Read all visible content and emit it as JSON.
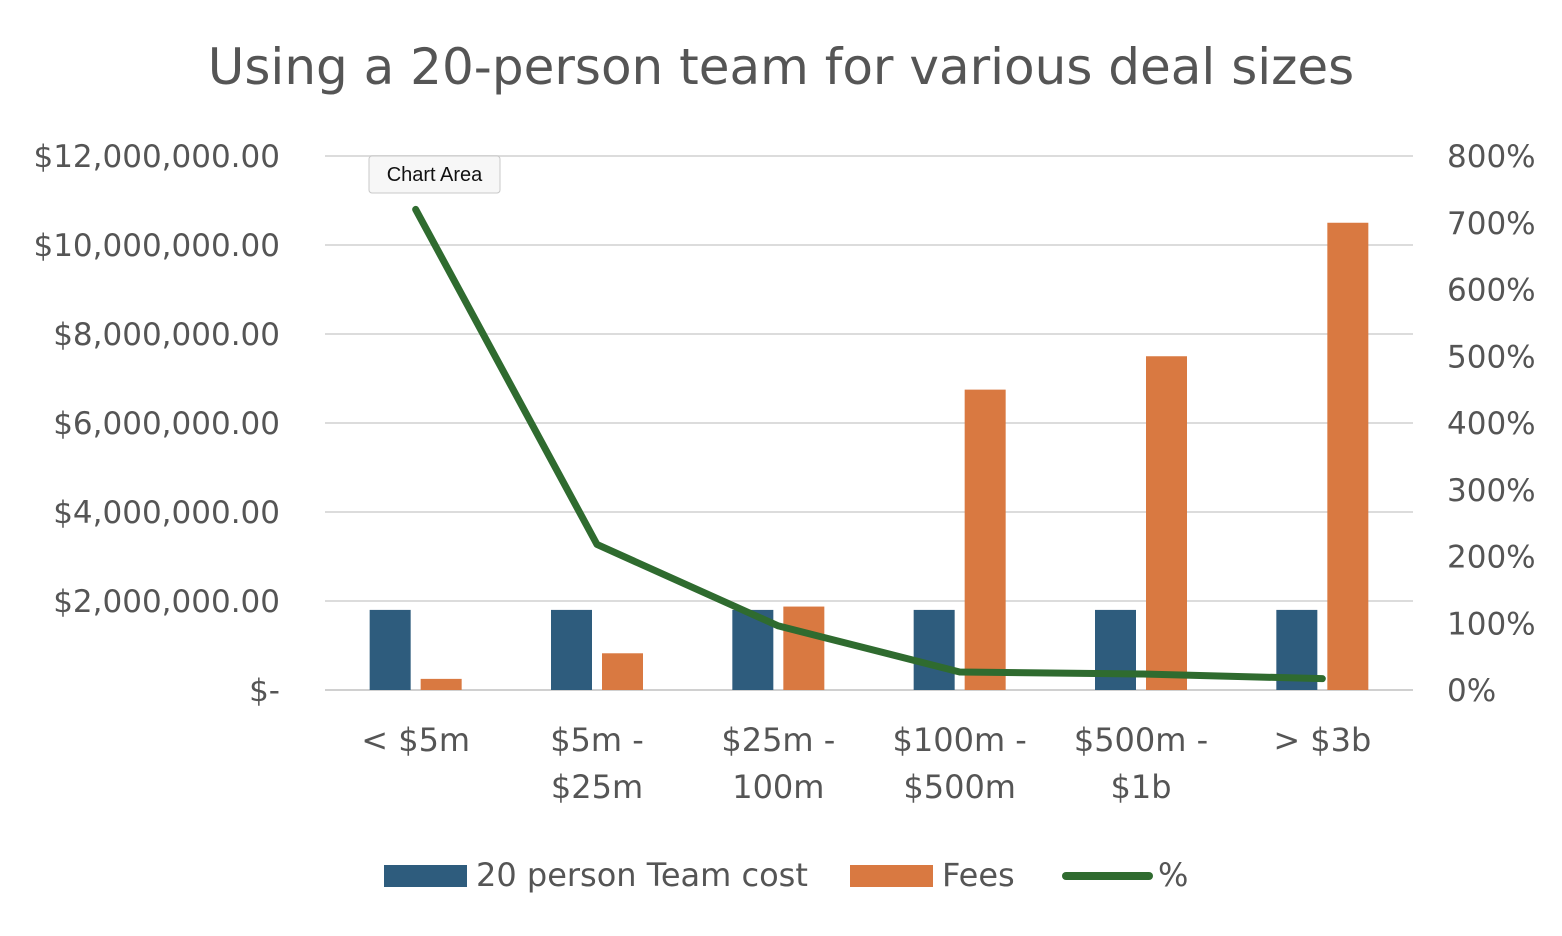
{
  "tooltip": {
    "label": "Chart Area"
  },
  "chart_data": {
    "type": "bar",
    "title": "Using a 20-person team for various deal sizes",
    "categories": [
      [
        "< $5m"
      ],
      [
        "$5m -",
        "$25m"
      ],
      [
        "$25m -",
        "100m"
      ],
      [
        "$100m -",
        "$500m"
      ],
      [
        "$500m -",
        "$1b"
      ],
      [
        "> $3b"
      ]
    ],
    "ylim": [
      0,
      12000000
    ],
    "y_ticks": [
      0,
      2000000,
      4000000,
      6000000,
      8000000,
      10000000,
      12000000
    ],
    "y_tick_labels": [
      "$-",
      "$2,000,000.00",
      "$4,000,000.00",
      "$6,000,000.00",
      "$8,000,000.00",
      "$10,000,000.00",
      "$12,000,000.00"
    ],
    "y2lim": [
      0,
      8
    ],
    "y2_ticks": [
      0,
      1,
      2,
      3,
      4,
      5,
      6,
      7,
      8
    ],
    "y2_tick_labels": [
      "0%",
      "100%",
      "200%",
      "300%",
      "400%",
      "500%",
      "600%",
      "700%",
      "800%"
    ],
    "grid": true,
    "legend_position": "bottom",
    "series": [
      {
        "name": "20 person Team cost",
        "type": "bar",
        "axis": "left",
        "color": "#2E5C7D",
        "values": [
          1800000,
          1800000,
          1800000,
          1800000,
          1800000,
          1800000
        ]
      },
      {
        "name": "Fees",
        "type": "bar",
        "axis": "left",
        "color": "#D97941",
        "values": [
          250000,
          825000,
          1875000,
          6750000,
          7500000,
          10500000
        ]
      },
      {
        "name": "%",
        "type": "line",
        "axis": "right",
        "color": "#2F6B2F",
        "values": [
          7.2,
          2.18,
          0.96,
          0.27,
          0.24,
          0.17
        ]
      }
    ]
  }
}
